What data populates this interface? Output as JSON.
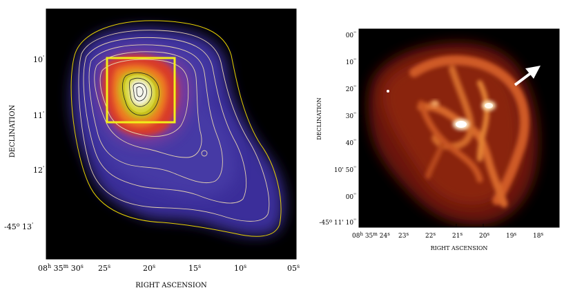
{
  "left_panel": {
    "xlabel": "RIGHT ASCENSION",
    "ylabel": "DECLINATION",
    "x_ticks": [
      {
        "main": "08",
        "sup": "h",
        "main2": " 35",
        "sup2": "m",
        "main3": " 30",
        "sup3": "s"
      },
      {
        "main": "25",
        "sup": "s"
      },
      {
        "main": "20",
        "sup": "s"
      },
      {
        "main": "15",
        "sup": "s"
      },
      {
        "main": "10",
        "sup": "s"
      },
      {
        "main": "05",
        "sup": "s"
      }
    ],
    "y_ticks": [
      {
        "main": "10",
        "sup": "'"
      },
      {
        "main": "11",
        "sup": "'"
      },
      {
        "main": "12",
        "sup": "'"
      },
      {
        "main": "-45",
        "sup": "o",
        "main2": " 13",
        "sup2": "'"
      }
    ]
  },
  "right_panel": {
    "xlabel": "RIGHT ASCENSION",
    "ylabel": "DECLINATION",
    "x_ticks": [
      {
        "main": "08",
        "sup": "h",
        "main2": " 35",
        "sup2": "m",
        "main3": " 24",
        "sup3": "s"
      },
      {
        "main": "23",
        "sup": "s"
      },
      {
        "main": "22",
        "sup": "s"
      },
      {
        "main": "21",
        "sup": "s"
      },
      {
        "main": "20",
        "sup": "s"
      },
      {
        "main": "19",
        "sup": "s"
      },
      {
        "main": "18",
        "sup": "s"
      }
    ],
    "y_ticks": [
      {
        "main": "00",
        "sup": "''"
      },
      {
        "main": "10",
        "sup": "''"
      },
      {
        "main": "20",
        "sup": "''"
      },
      {
        "main": "30",
        "sup": "''"
      },
      {
        "main": "40",
        "sup": "''"
      },
      {
        "main": "10' 50",
        "sup": "''"
      },
      {
        "main": "00",
        "sup": "''"
      },
      {
        "main": "-45",
        "sup": "o",
        "main2": " 11' 10",
        "sup2": "''"
      }
    ]
  },
  "colors": {
    "frame": "#000000",
    "highlight_box": "#f2ee1a",
    "outer_contour": "#e8d200",
    "inner_contour": "#e6d3b0",
    "arrow": "#ffffff"
  },
  "icons": {
    "direction_arrow": "arrow-up-right-icon"
  }
}
